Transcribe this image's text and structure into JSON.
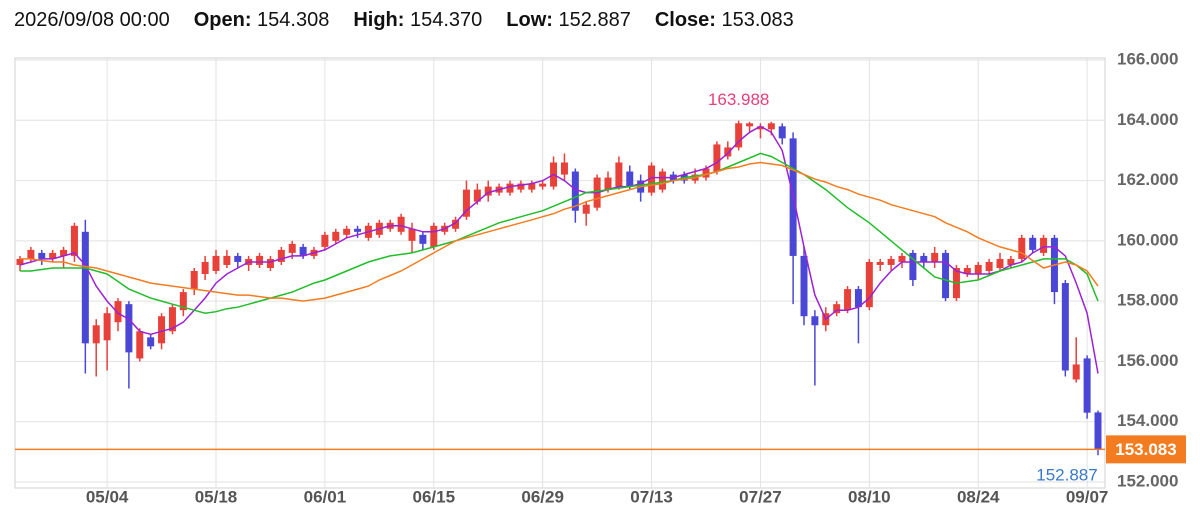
{
  "header": {
    "date": "2026/09/08 00:00",
    "fields": [
      {
        "label": "Open:",
        "value": "154.308"
      },
      {
        "label": "High:",
        "value": "154.370"
      },
      {
        "label": "Low:",
        "value": "152.887"
      },
      {
        "label": "Close:",
        "value": "153.083"
      }
    ]
  },
  "chart_data": {
    "type": "candlestick",
    "categories": [
      null,
      null,
      null,
      null,
      null,
      null,
      null,
      null,
      "05/04",
      null,
      null,
      null,
      null,
      null,
      null,
      null,
      null,
      null,
      "05/18",
      null,
      null,
      null,
      null,
      null,
      null,
      null,
      null,
      null,
      "06/01",
      null,
      null,
      null,
      null,
      null,
      null,
      null,
      null,
      null,
      "06/15",
      null,
      null,
      null,
      null,
      null,
      null,
      null,
      null,
      null,
      "06/29",
      null,
      null,
      null,
      null,
      null,
      null,
      null,
      null,
      null,
      "07/13",
      null,
      null,
      null,
      null,
      null,
      null,
      null,
      null,
      null,
      "07/27",
      null,
      null,
      null,
      null,
      null,
      null,
      null,
      null,
      null,
      "08/10",
      null,
      null,
      null,
      null,
      null,
      null,
      null,
      null,
      null,
      "08/24",
      null,
      null,
      null,
      null,
      null,
      null,
      null,
      null,
      null,
      "09/07",
      null
    ],
    "open": [
      159.2,
      159.4,
      159.6,
      159.4,
      159.5,
      159.5,
      160.3,
      156.6,
      156.7,
      157.3,
      157.9,
      156.1,
      156.8,
      156.6,
      157.0,
      157.7,
      158.4,
      158.9,
      159.0,
      159.2,
      159.5,
      159.2,
      159.2,
      159.1,
      159.3,
      159.6,
      159.8,
      159.5,
      159.8,
      160.0,
      160.2,
      160.4,
      160.1,
      160.2,
      160.4,
      160.3,
      160.0,
      160.2,
      159.8,
      160.3,
      160.4,
      160.8,
      161.3,
      161.5,
      161.6,
      161.6,
      161.7,
      161.7,
      161.8,
      161.8,
      162.2,
      162.3,
      160.9,
      161.1,
      161.7,
      161.8,
      162.3,
      162.0,
      161.6,
      161.7,
      162.2,
      162.2,
      162.0,
      162.1,
      162.3,
      162.8,
      163.1,
      163.8,
      163.7,
      163.7,
      163.8,
      163.4,
      159.5,
      157.5,
      157.2,
      157.6,
      157.7,
      158.4,
      157.8,
      159.2,
      159.2,
      159.3,
      159.6,
      159.5,
      159.3,
      159.6,
      158.1,
      158.9,
      158.9,
      159.0,
      159.1,
      159.2,
      159.4,
      160.1,
      159.6,
      160.1,
      158.6,
      155.4,
      156.1,
      154.308
    ],
    "high": [
      159.5,
      159.8,
      159.7,
      159.7,
      159.8,
      160.6,
      160.7,
      157.4,
      157.8,
      158.1,
      158.0,
      157.1,
      156.9,
      157.6,
      157.9,
      158.4,
      159.1,
      159.5,
      159.7,
      159.7,
      159.6,
      159.5,
      159.6,
      159.5,
      159.8,
      160.0,
      159.9,
      159.8,
      160.3,
      160.4,
      160.5,
      160.5,
      160.6,
      160.7,
      160.7,
      160.9,
      160.6,
      160.3,
      160.6,
      160.6,
      160.8,
      162.0,
      161.9,
      162.0,
      161.9,
      162.0,
      162.0,
      162.0,
      162.0,
      162.8,
      162.9,
      162.4,
      161.3,
      162.2,
      162.3,
      162.8,
      162.5,
      162.2,
      162.6,
      162.4,
      162.3,
      162.3,
      162.4,
      162.5,
      163.3,
      163.3,
      163.988,
      163.95,
      163.9,
      163.95,
      163.9,
      163.6,
      159.8,
      157.7,
      157.8,
      158.0,
      158.5,
      158.5,
      159.4,
      159.4,
      159.5,
      159.6,
      159.7,
      159.6,
      159.8,
      159.7,
      159.2,
      159.2,
      159.3,
      159.4,
      159.6,
      159.5,
      160.2,
      160.2,
      160.2,
      160.2,
      158.7,
      156.8,
      156.2,
      154.37
    ],
    "low": [
      159.0,
      159.3,
      159.2,
      159.3,
      159.1,
      159.3,
      155.6,
      155.5,
      155.7,
      157.0,
      155.1,
      156.0,
      156.4,
      156.4,
      156.9,
      157.5,
      158.2,
      158.7,
      158.9,
      159.1,
      159.1,
      159.0,
      159.1,
      159.0,
      159.2,
      159.4,
      159.4,
      159.4,
      159.7,
      159.9,
      160.1,
      160.1,
      160.0,
      160.1,
      160.3,
      160.2,
      159.6,
      159.7,
      159.7,
      160.2,
      160.3,
      160.7,
      161.2,
      161.3,
      161.5,
      161.5,
      161.6,
      161.6,
      161.7,
      161.7,
      162.0,
      160.6,
      160.5,
      161.0,
      161.6,
      161.7,
      161.7,
      161.3,
      161.5,
      161.6,
      161.9,
      161.9,
      161.9,
      162.0,
      162.2,
      162.7,
      163.0,
      163.6,
      163.4,
      163.5,
      163.2,
      157.9,
      157.2,
      155.2,
      157.0,
      157.5,
      157.6,
      156.6,
      157.7,
      159.0,
      159.0,
      159.1,
      158.5,
      159.1,
      159.1,
      158.0,
      158.0,
      158.8,
      158.7,
      158.9,
      159.0,
      159.1,
      159.3,
      159.6,
      159.5,
      157.9,
      155.5,
      155.3,
      154.1,
      152.887
    ],
    "close": [
      159.4,
      159.7,
      159.4,
      159.6,
      159.7,
      160.5,
      156.6,
      157.2,
      157.6,
      158.0,
      156.3,
      157.0,
      156.5,
      157.5,
      157.8,
      158.3,
      159.0,
      159.3,
      159.5,
      159.5,
      159.3,
      159.4,
      159.5,
      159.4,
      159.7,
      159.9,
      159.5,
      159.7,
      160.2,
      160.3,
      160.4,
      160.3,
      160.5,
      160.6,
      160.6,
      160.8,
      160.4,
      159.9,
      160.5,
      160.5,
      160.7,
      161.7,
      161.7,
      161.8,
      161.8,
      161.9,
      161.9,
      161.9,
      161.9,
      162.6,
      162.6,
      161.0,
      161.2,
      162.1,
      162.1,
      162.6,
      161.8,
      161.6,
      162.5,
      162.3,
      162.0,
      162.0,
      162.2,
      162.4,
      163.2,
      163.1,
      163.9,
      163.9,
      163.8,
      163.9,
      163.4,
      159.5,
      157.5,
      157.2,
      157.6,
      157.9,
      158.4,
      157.8,
      159.3,
      159.3,
      159.4,
      159.5,
      158.7,
      159.3,
      159.6,
      158.1,
      159.1,
      159.1,
      159.2,
      159.3,
      159.4,
      159.4,
      160.1,
      159.7,
      160.1,
      158.3,
      155.7,
      155.9,
      154.3,
      153.083
    ],
    "up_color": "#e8413a",
    "down_color": "#4b47d6",
    "overlays": [
      {
        "color": "#9b22d6",
        "values": [
          159.2,
          159.3,
          159.4,
          159.4,
          159.5,
          159.6,
          159.2,
          158.5,
          158.0,
          157.6,
          157.4,
          157.0,
          156.9,
          157.0,
          157.1,
          157.3,
          157.7,
          158.1,
          158.6,
          158.9,
          159.1,
          159.3,
          159.3,
          159.3,
          159.4,
          159.5,
          159.5,
          159.6,
          159.7,
          159.9,
          160.1,
          160.2,
          160.3,
          160.4,
          160.5,
          160.5,
          160.4,
          160.3,
          160.3,
          160.4,
          160.6,
          161.0,
          161.3,
          161.6,
          161.7,
          161.8,
          161.85,
          161.9,
          162.0,
          162.2,
          162.0,
          161.7,
          161.6,
          161.6,
          161.7,
          161.8,
          161.8,
          161.9,
          162.1,
          162.1,
          162.1,
          162.2,
          162.3,
          162.4,
          162.6,
          162.9,
          163.3,
          163.6,
          163.8,
          163.6,
          163.0,
          161.5,
          159.8,
          158.2,
          157.4,
          157.7,
          157.7,
          157.8,
          158.1,
          158.6,
          159.0,
          159.3,
          159.3,
          159.3,
          159.3,
          159.3,
          159.0,
          158.9,
          158.9,
          158.9,
          159.0,
          159.2,
          159.3,
          159.6,
          159.8,
          159.8,
          159.5,
          158.6,
          157.6,
          155.6
        ]
      },
      {
        "color": "#22bd2a",
        "values": [
          159.0,
          159.0,
          159.05,
          159.1,
          159.1,
          159.1,
          159.1,
          159.0,
          158.9,
          158.65,
          158.4,
          158.25,
          158.1,
          158.0,
          157.9,
          157.8,
          157.7,
          157.6,
          157.65,
          157.75,
          157.8,
          157.9,
          158.0,
          158.1,
          158.2,
          158.3,
          158.45,
          158.6,
          158.7,
          158.85,
          159.0,
          159.15,
          159.3,
          159.4,
          159.5,
          159.55,
          159.6,
          159.7,
          159.8,
          159.9,
          160.0,
          160.15,
          160.3,
          160.45,
          160.6,
          160.7,
          160.8,
          160.9,
          161.0,
          161.15,
          161.3,
          161.45,
          161.6,
          161.65,
          161.7,
          161.75,
          161.8,
          161.85,
          161.9,
          161.95,
          162.0,
          162.1,
          162.15,
          162.2,
          162.3,
          162.45,
          162.6,
          162.75,
          162.9,
          162.8,
          162.6,
          162.4,
          162.2,
          161.95,
          161.7,
          161.4,
          161.1,
          160.85,
          160.6,
          160.3,
          160.0,
          159.7,
          159.4,
          159.1,
          158.8,
          158.7,
          158.6,
          158.65,
          158.7,
          158.85,
          159.0,
          159.1,
          159.2,
          159.3,
          159.4,
          159.4,
          159.4,
          159.2,
          158.9,
          158.0
        ]
      },
      {
        "color": "#f47c20",
        "values": [
          159.4,
          159.4,
          159.35,
          159.3,
          159.3,
          159.2,
          159.15,
          159.1,
          159.0,
          158.9,
          158.8,
          158.7,
          158.6,
          158.55,
          158.5,
          158.45,
          158.4,
          158.35,
          158.3,
          158.25,
          158.2,
          158.2,
          158.15,
          158.1,
          158.1,
          158.05,
          158.0,
          158.05,
          158.1,
          158.2,
          158.3,
          158.4,
          158.5,
          158.7,
          158.85,
          159.0,
          159.2,
          159.4,
          159.6,
          159.8,
          160.0,
          160.1,
          160.2,
          160.3,
          160.4,
          160.5,
          160.6,
          160.7,
          160.8,
          160.9,
          161.05,
          161.15,
          161.3,
          161.4,
          161.5,
          161.6,
          161.7,
          161.8,
          161.85,
          161.9,
          162.0,
          162.05,
          162.1,
          162.2,
          162.3,
          162.4,
          162.45,
          162.55,
          162.6,
          162.55,
          162.5,
          162.35,
          162.2,
          162.05,
          161.95,
          161.8,
          161.7,
          161.55,
          161.45,
          161.35,
          161.2,
          161.1,
          161.0,
          160.9,
          160.8,
          160.6,
          160.45,
          160.3,
          160.1,
          159.95,
          159.8,
          159.7,
          159.6,
          159.35,
          159.1,
          159.2,
          159.3,
          159.2,
          159.0,
          158.5
        ]
      }
    ],
    "annotations": [
      {
        "label": "163.988",
        "value": 163.988,
        "color": "#e4407a"
      },
      {
        "label": "152.887",
        "value": 152.887,
        "color": "#3a78c8"
      }
    ],
    "last_price": {
      "value": 153.083,
      "label": "153.083",
      "color": "#f47c20"
    },
    "ylim": [
      152,
      166
    ],
    "yticks": [
      {
        "value": 152,
        "label": "152.000"
      },
      {
        "value": 154,
        "label": "154.000"
      },
      {
        "value": 156,
        "label": "156.000"
      },
      {
        "value": 158,
        "label": "158.000"
      },
      {
        "value": 160,
        "label": "160.000"
      },
      {
        "value": 162,
        "label": "162.000"
      },
      {
        "value": 164,
        "label": "164.000"
      },
      {
        "value": 166,
        "label": "166.000"
      }
    ],
    "grid": true
  }
}
